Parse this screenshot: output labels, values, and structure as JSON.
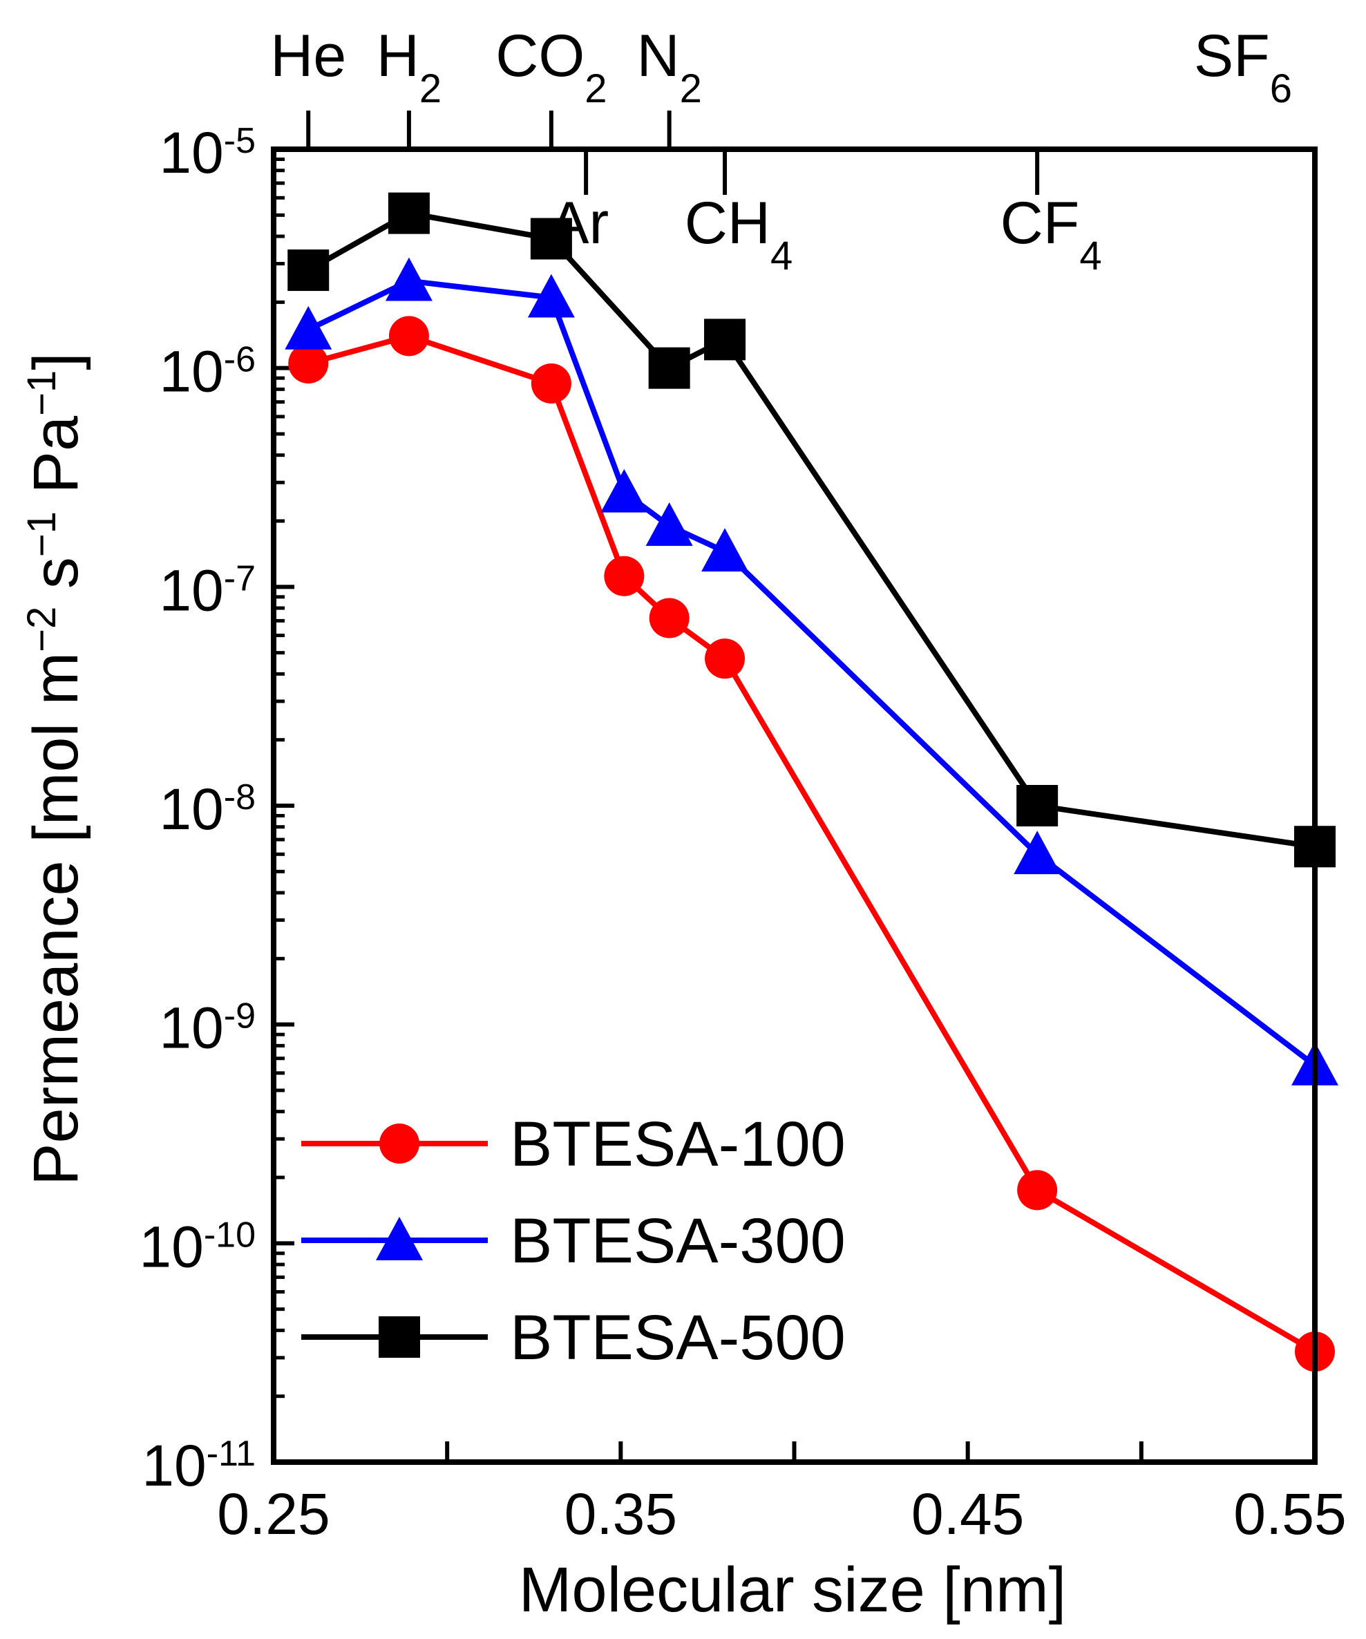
{
  "chart_data": {
    "type": "line",
    "xlabel": "Molecular size [nm]",
    "ylabel": {
      "text": "Permeance [mol m",
      "sup1": "−2",
      "mid1": " s",
      "sup2": "−1",
      "mid2": " Pa",
      "sup3": "−1",
      "end": "]"
    },
    "xlim": [
      0.25,
      0.55
    ],
    "xscale": "linear",
    "x_ticks": [
      0.25,
      0.35,
      0.45,
      0.55
    ],
    "x_tick_labels": [
      "0.25",
      "0.35",
      "0.45",
      "0.55"
    ],
    "ylim": [
      1e-11,
      1e-05
    ],
    "yscale": "log",
    "y_ticks": [
      {
        "value": 1e-05,
        "base": "10",
        "exp": "-5"
      },
      {
        "value": 1e-06,
        "base": "10",
        "exp": "-6"
      },
      {
        "value": 1e-07,
        "base": "10",
        "exp": "-7"
      },
      {
        "value": 1e-08,
        "base": "10",
        "exp": "-8"
      },
      {
        "value": 1e-09,
        "base": "10",
        "exp": "-9"
      },
      {
        "value": 1e-10,
        "base": "10",
        "exp": "-10"
      },
      {
        "value": 1e-11,
        "base": "10",
        "exp": "-11"
      }
    ],
    "molecules": [
      {
        "name": "He",
        "sub": "",
        "x": 0.26,
        "side": "top"
      },
      {
        "name": "H",
        "sub": "2",
        "x": 0.289,
        "side": "top"
      },
      {
        "name": "CO",
        "sub": "2",
        "x": 0.33,
        "side": "top"
      },
      {
        "name": "N",
        "sub": "2",
        "x": 0.364,
        "side": "top"
      },
      {
        "name": "SF",
        "sub": "6",
        "x": 0.55,
        "side": "top"
      },
      {
        "name": "Ar",
        "sub": "",
        "x": 0.34,
        "side": "bottom"
      },
      {
        "name": "CH",
        "sub": "4",
        "x": 0.38,
        "side": "bottom"
      },
      {
        "name": "CF",
        "sub": "4",
        "x": 0.47,
        "side": "bottom"
      }
    ],
    "series": [
      {
        "name": "BTESA-100",
        "color": "#ff0000",
        "marker": "circle",
        "x": [
          0.26,
          0.289,
          0.33,
          0.351,
          0.364,
          0.38,
          0.47,
          0.55
        ],
        "values": [
          1.05e-06,
          1.4e-06,
          8.5e-07,
          1.12e-07,
          7.2e-08,
          4.7e-08,
          1.75e-10,
          3.2e-11
        ]
      },
      {
        "name": "BTESA-300",
        "color": "#0000ff",
        "marker": "triangle",
        "x": [
          0.26,
          0.289,
          0.33,
          0.351,
          0.364,
          0.38,
          0.47,
          0.55
        ],
        "values": [
          1.5e-06,
          2.5e-06,
          2.1e-06,
          2.7e-07,
          1.9e-07,
          1.45e-07,
          6e-09,
          6.5e-10
        ]
      },
      {
        "name": "BTESA-500",
        "color": "#000000",
        "marker": "square",
        "x": [
          0.26,
          0.289,
          0.33,
          0.364,
          0.38,
          0.47,
          0.55
        ],
        "values": [
          2.8e-06,
          5.1e-06,
          3.9e-06,
          1e-06,
          1.35e-06,
          1e-08,
          6.5e-09
        ]
      }
    ],
    "legend_position": "bottom-left"
  }
}
